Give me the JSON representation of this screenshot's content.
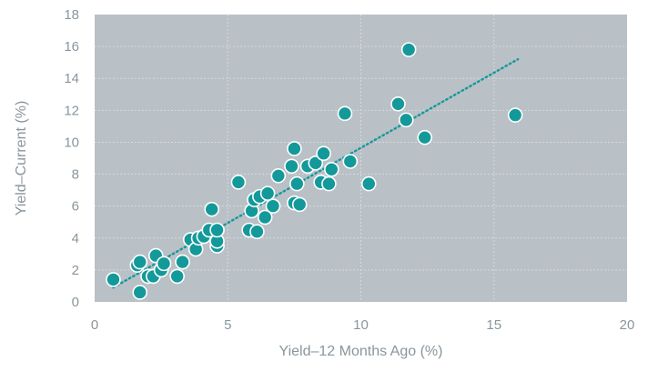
{
  "chart_data": {
    "type": "scatter",
    "title": "",
    "xlabel": "Yield–12 Months Ago (%)",
    "ylabel": "Yield–Current (%)",
    "xlim": [
      0,
      20
    ],
    "ylim": [
      0,
      18
    ],
    "xticks": [
      "0",
      "5",
      "10",
      "15",
      "20"
    ],
    "yticks": [
      "0",
      "2",
      "4",
      "6",
      "8",
      "10",
      "12",
      "14",
      "16",
      "18"
    ],
    "grid": true,
    "legend": "none",
    "colors": {
      "plot_background": "#b9c0c6",
      "marker_fill": "#14999a",
      "marker_stroke": "#ffffff",
      "trendline": "#14999a",
      "grid": "#d6dadd"
    },
    "trendline": {
      "x": [
        0.7,
        15.9
      ],
      "y": [
        0.9,
        15.2
      ]
    },
    "points": [
      {
        "x": 0.7,
        "y": 1.4
      },
      {
        "x": 1.6,
        "y": 2.3
      },
      {
        "x": 1.7,
        "y": 2.5
      },
      {
        "x": 1.7,
        "y": 0.6
      },
      {
        "x": 2.0,
        "y": 1.6
      },
      {
        "x": 2.2,
        "y": 1.6
      },
      {
        "x": 2.3,
        "y": 2.9
      },
      {
        "x": 2.5,
        "y": 2.0
      },
      {
        "x": 2.6,
        "y": 2.4
      },
      {
        "x": 3.1,
        "y": 1.6
      },
      {
        "x": 3.3,
        "y": 2.5
      },
      {
        "x": 3.6,
        "y": 3.9
      },
      {
        "x": 3.8,
        "y": 3.3
      },
      {
        "x": 3.9,
        "y": 4.0
      },
      {
        "x": 4.1,
        "y": 4.1
      },
      {
        "x": 4.3,
        "y": 4.5
      },
      {
        "x": 4.4,
        "y": 5.8
      },
      {
        "x": 4.6,
        "y": 3.5
      },
      {
        "x": 4.6,
        "y": 3.8
      },
      {
        "x": 4.6,
        "y": 4.5
      },
      {
        "x": 5.4,
        "y": 7.5
      },
      {
        "x": 5.8,
        "y": 4.5
      },
      {
        "x": 5.9,
        "y": 5.7
      },
      {
        "x": 6.0,
        "y": 6.4
      },
      {
        "x": 6.1,
        "y": 4.4
      },
      {
        "x": 6.2,
        "y": 6.6
      },
      {
        "x": 6.4,
        "y": 5.3
      },
      {
        "x": 6.5,
        "y": 6.8
      },
      {
        "x": 6.7,
        "y": 6.0
      },
      {
        "x": 6.9,
        "y": 7.9
      },
      {
        "x": 7.4,
        "y": 8.5
      },
      {
        "x": 7.5,
        "y": 9.6
      },
      {
        "x": 7.5,
        "y": 6.2
      },
      {
        "x": 7.6,
        "y": 7.4
      },
      {
        "x": 7.7,
        "y": 6.1
      },
      {
        "x": 8.0,
        "y": 8.5
      },
      {
        "x": 8.3,
        "y": 8.7
      },
      {
        "x": 8.5,
        "y": 7.5
      },
      {
        "x": 8.6,
        "y": 9.3
      },
      {
        "x": 8.8,
        "y": 7.4
      },
      {
        "x": 8.9,
        "y": 8.3
      },
      {
        "x": 9.4,
        "y": 11.8
      },
      {
        "x": 9.6,
        "y": 8.8
      },
      {
        "x": 10.3,
        "y": 7.4
      },
      {
        "x": 11.4,
        "y": 12.4
      },
      {
        "x": 11.7,
        "y": 11.4
      },
      {
        "x": 11.8,
        "y": 15.8
      },
      {
        "x": 12.4,
        "y": 10.3
      },
      {
        "x": 15.8,
        "y": 11.7
      }
    ]
  }
}
